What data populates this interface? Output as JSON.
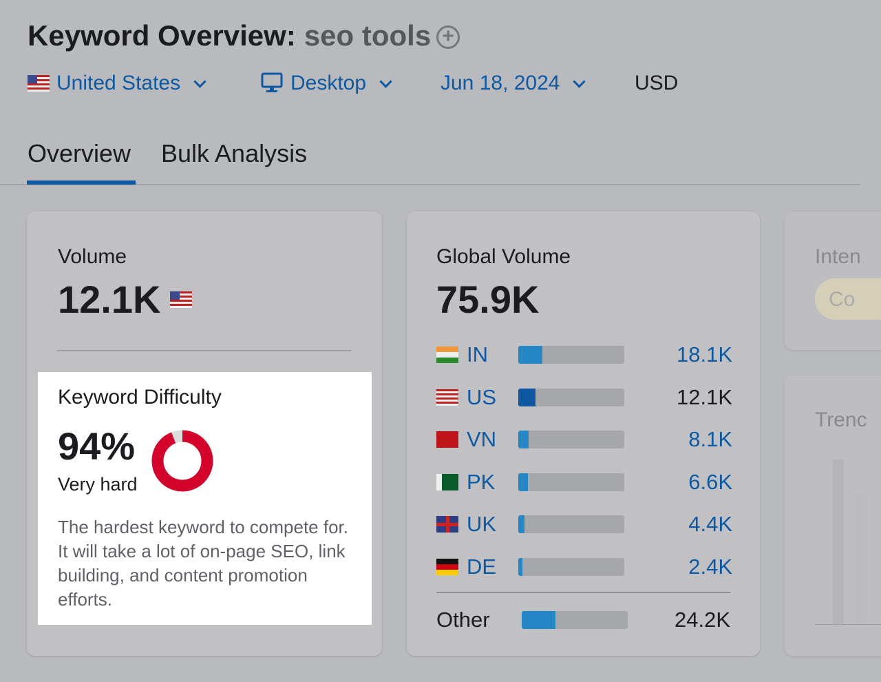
{
  "header": {
    "title": "Keyword Overview:",
    "keyword": "seo tools",
    "add_icon": "plus-circle-icon"
  },
  "filters": {
    "country": "United States",
    "device": "Desktop",
    "date": "Jun 18, 2024",
    "currency": "USD"
  },
  "tabs": [
    {
      "label": "Overview",
      "active": true
    },
    {
      "label": "Bulk Analysis",
      "active": false
    }
  ],
  "volume": {
    "label": "Volume",
    "value": "12.1K"
  },
  "difficulty": {
    "label": "Keyword Difficulty",
    "value": "94%",
    "percent": 94,
    "level": "Very hard",
    "description": "The hardest keyword to compete for. It will take a lot of on-page SEO, link building, and content promotion efforts.",
    "color": "#d3032b"
  },
  "global": {
    "label": "Global Volume",
    "value": "75.9K",
    "rows": [
      {
        "code": "IN",
        "value": "18.1K",
        "share": 0.23,
        "link": true
      },
      {
        "code": "US",
        "value": "12.1K",
        "share": 0.16,
        "link": false
      },
      {
        "code": "VN",
        "value": "8.1K",
        "share": 0.1,
        "link": true
      },
      {
        "code": "PK",
        "value": "6.6K",
        "share": 0.09,
        "link": true
      },
      {
        "code": "UK",
        "value": "4.4K",
        "share": 0.06,
        "link": true
      },
      {
        "code": "DE",
        "value": "2.4K",
        "share": 0.04,
        "link": true
      }
    ],
    "other": {
      "label": "Other",
      "value": "24.2K",
      "share": 0.32
    }
  },
  "intent": {
    "label": "Inten",
    "badge": "Co"
  },
  "trend": {
    "label": "Trenc"
  }
}
